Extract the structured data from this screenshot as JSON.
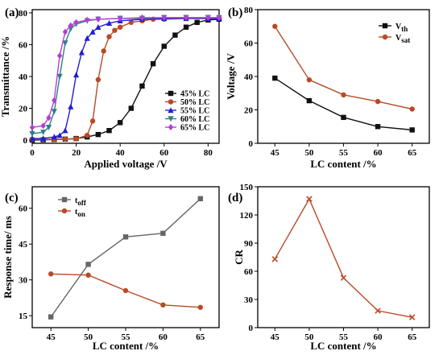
{
  "chart_data": [
    {
      "panel": "(a)",
      "type": "line",
      "xlabel": "Applied voltage /V",
      "ylabel": "Transmittance /%",
      "xlim": [
        0,
        85
      ],
      "ylim": [
        -2,
        82
      ],
      "xticks": [
        "0",
        "20",
        "40",
        "60",
        "80"
      ],
      "yticks": [
        "0",
        "20",
        "40",
        "60",
        "80"
      ],
      "legend_position": "bottom-right",
      "series": [
        {
          "name": "45% LC",
          "color": "#111111",
          "marker": "square",
          "x": [
            0,
            5,
            10,
            15,
            20,
            25,
            30,
            35,
            40,
            45,
            50,
            55,
            60,
            65,
            70,
            75,
            80,
            85
          ],
          "y": [
            0,
            0.2,
            0.4,
            0.6,
            1,
            2,
            3.5,
            6,
            11,
            20,
            34,
            48,
            59,
            66,
            71,
            74,
            75.5,
            76
          ]
        },
        {
          "name": "50% LC",
          "color": "#b84a26",
          "marker": "circle",
          "x": [
            0,
            5,
            10,
            15,
            20,
            25,
            27.5,
            30,
            32.5,
            35,
            37.5,
            40,
            45,
            50,
            55,
            60,
            70,
            80,
            85
          ],
          "y": [
            0.5,
            0.5,
            0.5,
            0.6,
            0.8,
            3,
            12,
            38,
            56,
            65,
            69,
            71,
            74,
            75,
            76,
            76,
            76.5,
            76.5,
            76.5
          ]
        },
        {
          "name": "55% LC",
          "color": "#1f1fd0",
          "marker": "triangle",
          "x": [
            0,
            5,
            10,
            12.5,
            15,
            17.5,
            20,
            22.5,
            25,
            27.5,
            30,
            35,
            40,
            50,
            60,
            70,
            80,
            85
          ],
          "y": [
            1,
            1,
            2,
            3,
            6,
            21,
            41,
            55,
            64,
            68,
            71,
            73.5,
            75,
            76,
            76.5,
            76.5,
            76.5,
            76.5
          ]
        },
        {
          "name": "60% LC",
          "color": "#2e7f85",
          "marker": "triangle-down",
          "x": [
            0,
            5,
            7.5,
            10,
            12.5,
            15,
            17.5,
            20,
            25,
            30,
            40,
            50,
            60,
            70,
            80,
            85
          ],
          "y": [
            4,
            5,
            8,
            18,
            40,
            61,
            70,
            73,
            75,
            76,
            76.5,
            76.5,
            77,
            77,
            77,
            77
          ]
        },
        {
          "name": "65% LC",
          "color": "#b33fd6",
          "marker": "diamond",
          "x": [
            0,
            5,
            7.5,
            10,
            12.5,
            15,
            17.5,
            20,
            25,
            30,
            40,
            50,
            60,
            70,
            80,
            85
          ],
          "y": [
            8,
            9,
            14,
            25,
            53,
            68,
            72,
            74,
            75.5,
            76,
            76.5,
            77,
            77,
            77,
            77,
            77
          ]
        }
      ]
    },
    {
      "panel": "(b)",
      "type": "line",
      "xlabel": "LC content /%",
      "ylabel": "Voltage /V",
      "xlim": [
        42.5,
        67.5
      ],
      "ylim": [
        0,
        80
      ],
      "xticks": [
        "45",
        "50",
        "55",
        "60",
        "65"
      ],
      "yticks": [
        "0",
        "20",
        "40",
        "60",
        "80"
      ],
      "legend_position": "top-right",
      "categories": [
        45,
        50,
        55,
        60,
        65
      ],
      "series": [
        {
          "name": "V",
          "subscript": "th",
          "color": "#111111",
          "marker": "square",
          "values": [
            39,
            25.5,
            15.5,
            10,
            8
          ]
        },
        {
          "name": "V",
          "subscript": "sat",
          "color": "#b84a26",
          "marker": "circle",
          "values": [
            70,
            38,
            29,
            25,
            20.5
          ]
        }
      ]
    },
    {
      "panel": "(c)",
      "type": "line",
      "xlabel": "LC content /%",
      "ylabel": "Response time/ ms",
      "xlim": [
        42.5,
        67.5
      ],
      "ylim": [
        10,
        69
      ],
      "xticks": [
        "45",
        "50",
        "55",
        "60",
        "65"
      ],
      "yticks": [
        "15",
        "30",
        "45",
        "60"
      ],
      "legend_position": "top-left",
      "categories": [
        45,
        50,
        55,
        60,
        65
      ],
      "series": [
        {
          "name": "t",
          "subscript": "off",
          "color": "#666666",
          "marker": "square",
          "values": [
            14.5,
            36.5,
            48,
            49.5,
            64
          ]
        },
        {
          "name": "t",
          "subscript": "on",
          "color": "#b84a26",
          "marker": "circle",
          "values": [
            32.5,
            32,
            25.5,
            19.5,
            18.5
          ]
        }
      ]
    },
    {
      "panel": "(d)",
      "type": "line",
      "xlabel": "LC content /%",
      "ylabel": "CR",
      "xlim": [
        42.5,
        67.5
      ],
      "ylim": [
        0,
        150
      ],
      "xticks": [
        "45",
        "50",
        "55",
        "60",
        "65"
      ],
      "yticks": [
        "0",
        "30",
        "60",
        "90",
        "120",
        "150"
      ],
      "categories": [
        45,
        50,
        55,
        60,
        65
      ],
      "series": [
        {
          "color": "#b84a26",
          "marker": "cross",
          "values": [
            73,
            137,
            53,
            18,
            11
          ]
        }
      ]
    }
  ]
}
